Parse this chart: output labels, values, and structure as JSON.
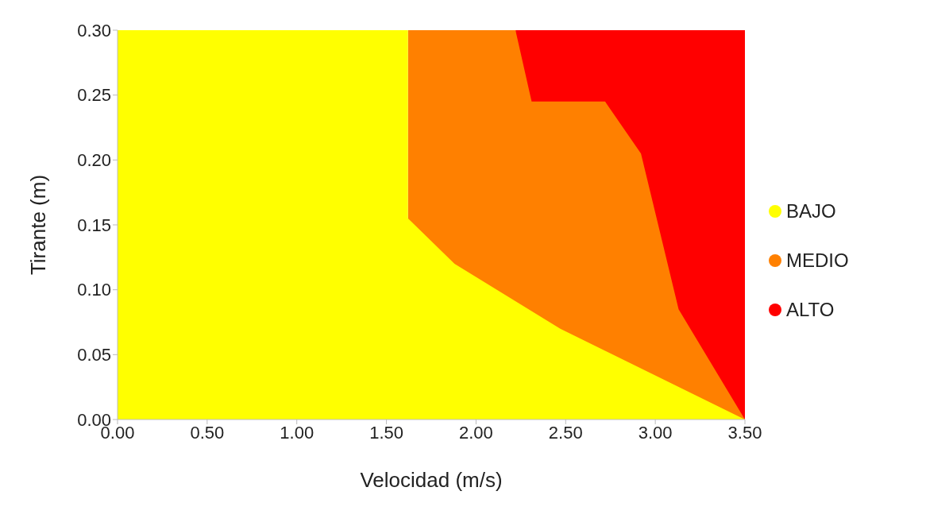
{
  "chart_data": {
    "type": "area",
    "xlabel": "Velocidad (m/s)",
    "ylabel": "Tirante (m)",
    "xlim": [
      0,
      3.5
    ],
    "xticks": [
      {
        "value": 0,
        "label": "0.00"
      },
      {
        "value": 0.5,
        "label": "0.50"
      },
      {
        "value": 1,
        "label": "1.00"
      },
      {
        "value": 1.5,
        "label": "1.50"
      },
      {
        "value": 2,
        "label": "2.00"
      },
      {
        "value": 2.5,
        "label": "2.50"
      },
      {
        "value": 3,
        "label": "3.00"
      },
      {
        "value": 3.5,
        "label": "3.50"
      }
    ],
    "ylim": [
      0,
      0.3
    ],
    "yticks": [
      {
        "value": 0,
        "label": "0.00"
      },
      {
        "value": 0.05,
        "label": "0.05"
      },
      {
        "value": 0.1,
        "label": "0.10"
      },
      {
        "value": 0.15,
        "label": "0.15"
      },
      {
        "value": 0.2,
        "label": "0.20"
      },
      {
        "value": 0.25,
        "label": "0.25"
      },
      {
        "value": 0.3,
        "label": "0.30"
      }
    ],
    "grid": false,
    "legend": "right",
    "series": [
      {
        "name": "BAJO",
        "color": "#ffff00",
        "x": [
          0,
          1.62,
          1.62,
          1.88,
          2.47,
          3.5
        ],
        "values": [
          0.3,
          0.3,
          0.155,
          0.12,
          0.07,
          0
        ]
      },
      {
        "name": "MEDIO",
        "color": "#ff8000",
        "x": [
          1.62,
          2.22,
          2.31,
          2.72,
          2.92,
          3.13,
          3.5
        ],
        "values": [
          0.3,
          0.3,
          0.245,
          0.245,
          0.205,
          0.085,
          0
        ]
      },
      {
        "name": "ALTO",
        "color": "#ff0000",
        "x": [
          2.22,
          3.5
        ],
        "values": [
          0.3,
          0.3
        ]
      }
    ]
  }
}
